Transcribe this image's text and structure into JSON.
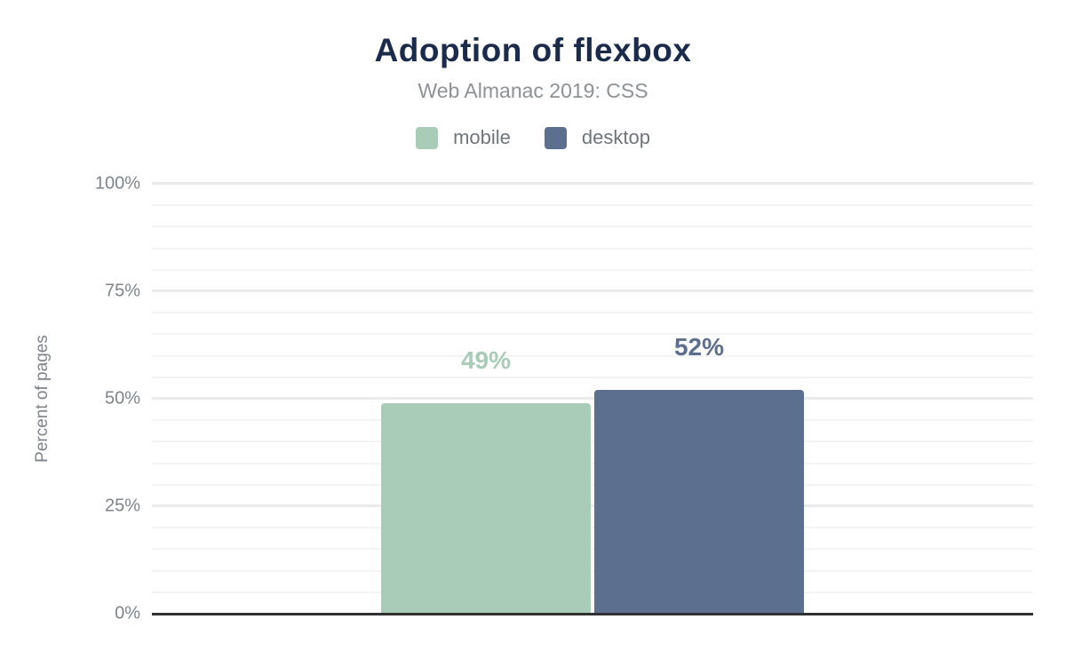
{
  "chart_data": {
    "type": "bar",
    "title": "Adoption of flexbox",
    "subtitle": "Web Almanac 2019: CSS",
    "ylabel": "Percent of pages",
    "series": [
      {
        "name": "mobile",
        "value": 49,
        "value_label": "49%",
        "color": "#a9ccb9"
      },
      {
        "name": "desktop",
        "value": 52,
        "value_label": "52%",
        "color": "#5d6f8e"
      }
    ],
    "ylim": [
      0,
      100
    ],
    "yticks": [
      {
        "value": 0,
        "label": "0%"
      },
      {
        "value": 25,
        "label": "25%"
      },
      {
        "value": 50,
        "label": "50%"
      },
      {
        "value": 75,
        "label": "75%"
      },
      {
        "value": 100,
        "label": "100%"
      }
    ],
    "grid": {
      "minor_step": 5,
      "major_step": 25,
      "enabled": true
    },
    "legend_position": "top",
    "colors": {
      "title": "#1b2b4b",
      "subtitle": "#8c9296",
      "axis_text": "#7c848c",
      "axis_line": "#303030"
    }
  }
}
